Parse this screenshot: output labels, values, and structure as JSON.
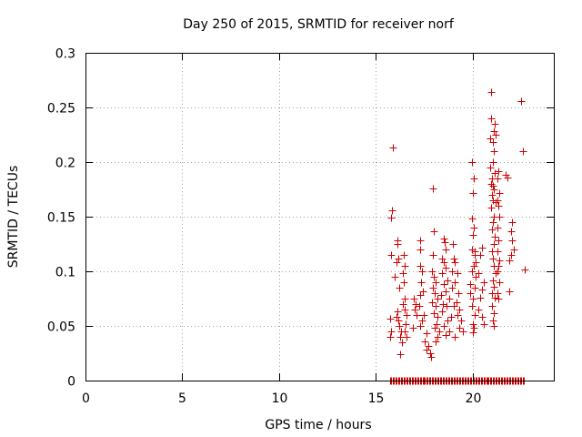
{
  "chart_data": {
    "type": "scatter",
    "title": "Day 250 of 2015, SRMTID for receiver norf",
    "xlabel": "GPS time / hours",
    "ylabel": "SRMTID / TECUs",
    "xlim": [
      0,
      24.2
    ],
    "ylim": [
      0,
      0.3
    ],
    "xticks": [
      0,
      5,
      10,
      15,
      20
    ],
    "xtick_labels": [
      "0",
      "5",
      "10",
      "15",
      "20"
    ],
    "yticks": [
      0,
      0.05,
      0.1,
      0.15,
      0.2,
      0.25,
      0.3
    ],
    "ytick_labels": [
      "0",
      "0.05",
      "0.1",
      "0.15",
      "0.2",
      "0.25",
      "0.3"
    ],
    "grid": true,
    "marker": "+",
    "color": "#cc0000",
    "points": [
      [
        15.73,
        0
      ],
      [
        15.8,
        0
      ],
      [
        15.87,
        0
      ],
      [
        15.94,
        0
      ],
      [
        16.01,
        0
      ],
      [
        16.08,
        0
      ],
      [
        16.15,
        0
      ],
      [
        16.22,
        0
      ],
      [
        16.29,
        0
      ],
      [
        16.36,
        0
      ],
      [
        16.43,
        0
      ],
      [
        16.5,
        0
      ],
      [
        16.57,
        0
      ],
      [
        16.64,
        0
      ],
      [
        16.71,
        0
      ],
      [
        16.78,
        0
      ],
      [
        16.85,
        0
      ],
      [
        16.92,
        0
      ],
      [
        16.99,
        0
      ],
      [
        17.06,
        0
      ],
      [
        17.13,
        0
      ],
      [
        17.2,
        0
      ],
      [
        17.27,
        0
      ],
      [
        17.34,
        0
      ],
      [
        17.41,
        0
      ],
      [
        17.48,
        0
      ],
      [
        17.55,
        0
      ],
      [
        17.62,
        0
      ],
      [
        17.69,
        0
      ],
      [
        17.76,
        0
      ],
      [
        17.83,
        0
      ],
      [
        17.9,
        0
      ],
      [
        17.97,
        0
      ],
      [
        18.04,
        0
      ],
      [
        18.11,
        0
      ],
      [
        18.18,
        0
      ],
      [
        18.25,
        0
      ],
      [
        18.32,
        0
      ],
      [
        18.39,
        0
      ],
      [
        18.46,
        0
      ],
      [
        18.53,
        0
      ],
      [
        18.6,
        0
      ],
      [
        18.67,
        0
      ],
      [
        18.74,
        0
      ],
      [
        18.81,
        0
      ],
      [
        18.88,
        0
      ],
      [
        18.95,
        0
      ],
      [
        19.02,
        0
      ],
      [
        19.09,
        0
      ],
      [
        19.16,
        0
      ],
      [
        19.23,
        0
      ],
      [
        19.3,
        0
      ],
      [
        19.37,
        0
      ],
      [
        19.44,
        0
      ],
      [
        19.51,
        0
      ],
      [
        19.58,
        0
      ],
      [
        19.65,
        0
      ],
      [
        19.72,
        0
      ],
      [
        19.79,
        0
      ],
      [
        19.86,
        0
      ],
      [
        19.93,
        0
      ],
      [
        20,
        0
      ],
      [
        20.07,
        0
      ],
      [
        20.14,
        0
      ],
      [
        20.21,
        0
      ],
      [
        20.28,
        0
      ],
      [
        20.35,
        0
      ],
      [
        20.42,
        0
      ],
      [
        20.49,
        0
      ],
      [
        20.56,
        0
      ],
      [
        20.63,
        0
      ],
      [
        20.7,
        0
      ],
      [
        20.77,
        0
      ],
      [
        20.84,
        0
      ],
      [
        20.91,
        0
      ],
      [
        20.98,
        0
      ],
      [
        21.05,
        0
      ],
      [
        21.12,
        0
      ],
      [
        21.19,
        0
      ],
      [
        21.26,
        0
      ],
      [
        21.33,
        0
      ],
      [
        21.4,
        0
      ],
      [
        21.47,
        0
      ],
      [
        21.54,
        0
      ],
      [
        21.61,
        0
      ],
      [
        21.68,
        0
      ],
      [
        21.75,
        0
      ],
      [
        21.82,
        0
      ],
      [
        21.89,
        0
      ],
      [
        21.96,
        0
      ],
      [
        22.03,
        0
      ],
      [
        22.1,
        0
      ],
      [
        22.17,
        0
      ],
      [
        22.24,
        0
      ],
      [
        22.31,
        0
      ],
      [
        22.38,
        0
      ],
      [
        22.45,
        0
      ],
      [
        22.52,
        0
      ],
      [
        22.59,
        0
      ],
      [
        22.66,
        0
      ],
      [
        15.88,
        0.213
      ],
      [
        15.82,
        0.156
      ],
      [
        15.8,
        0.149
      ],
      [
        15.8,
        0.115
      ],
      [
        15.75,
        0.057
      ],
      [
        15.78,
        0.045
      ],
      [
        15.76,
        0.04
      ],
      [
        16.1,
        0.128
      ],
      [
        16.12,
        0.125
      ],
      [
        16.05,
        0.108
      ],
      [
        16.15,
        0.112
      ],
      [
        16.0,
        0.095
      ],
      [
        16.2,
        0.085
      ],
      [
        16.1,
        0.063
      ],
      [
        16.05,
        0.058
      ],
      [
        16.15,
        0.055
      ],
      [
        16.2,
        0.05
      ],
      [
        16.3,
        0.045
      ],
      [
        16.25,
        0.04
      ],
      [
        16.35,
        0.035
      ],
      [
        16.25,
        0.024
      ],
      [
        16.45,
        0.115
      ],
      [
        16.5,
        0.105
      ],
      [
        16.4,
        0.098
      ],
      [
        16.45,
        0.09
      ],
      [
        16.5,
        0.075
      ],
      [
        16.4,
        0.07
      ],
      [
        16.5,
        0.065
      ],
      [
        16.6,
        0.06
      ],
      [
        16.55,
        0.052
      ],
      [
        16.5,
        0.045
      ],
      [
        16.6,
        0.04
      ],
      [
        16.95,
        0.075
      ],
      [
        17.05,
        0.07
      ],
      [
        17.0,
        0.065
      ],
      [
        17.1,
        0.06
      ],
      [
        16.9,
        0.048
      ],
      [
        17.3,
        0.128
      ],
      [
        17.28,
        0.12
      ],
      [
        17.3,
        0.105
      ],
      [
        17.4,
        0.1
      ],
      [
        17.35,
        0.09
      ],
      [
        17.45,
        0.082
      ],
      [
        17.3,
        0.078
      ],
      [
        17.25,
        0.068
      ],
      [
        17.5,
        0.06
      ],
      [
        17.4,
        0.055
      ],
      [
        17.3,
        0.05
      ],
      [
        17.6,
        0.043
      ],
      [
        17.55,
        0.036
      ],
      [
        17.7,
        0.032
      ],
      [
        17.6,
        0.028
      ],
      [
        17.8,
        0.025
      ],
      [
        17.85,
        0.022
      ],
      [
        17.95,
        0.176
      ],
      [
        18.0,
        0.137
      ],
      [
        17.95,
        0.115
      ],
      [
        17.9,
        0.1
      ],
      [
        18.0,
        0.095
      ],
      [
        18.1,
        0.09
      ],
      [
        17.95,
        0.085
      ],
      [
        18.05,
        0.08
      ],
      [
        18.2,
        0.075
      ],
      [
        17.9,
        0.072
      ],
      [
        18.1,
        0.068
      ],
      [
        18.0,
        0.062
      ],
      [
        18.2,
        0.058
      ],
      [
        18.15,
        0.052
      ],
      [
        18.05,
        0.048
      ],
      [
        18.3,
        0.045
      ],
      [
        18.2,
        0.04
      ],
      [
        18.1,
        0.036
      ],
      [
        18.5,
        0.13
      ],
      [
        18.55,
        0.127
      ],
      [
        18.6,
        0.12
      ],
      [
        18.4,
        0.112
      ],
      [
        18.5,
        0.108
      ],
      [
        18.6,
        0.103
      ],
      [
        18.4,
        0.098
      ],
      [
        18.7,
        0.092
      ],
      [
        18.5,
        0.088
      ],
      [
        18.6,
        0.082
      ],
      [
        18.35,
        0.078
      ],
      [
        18.8,
        0.075
      ],
      [
        18.45,
        0.07
      ],
      [
        18.65,
        0.068
      ],
      [
        18.4,
        0.063
      ],
      [
        18.9,
        0.058
      ],
      [
        18.7,
        0.055
      ],
      [
        18.5,
        0.05
      ],
      [
        18.8,
        0.045
      ],
      [
        18.6,
        0.042
      ],
      [
        19.0,
        0.125
      ],
      [
        19.05,
        0.112
      ],
      [
        19.1,
        0.108
      ],
      [
        18.95,
        0.1
      ],
      [
        19.2,
        0.098
      ],
      [
        19.1,
        0.09
      ],
      [
        18.95,
        0.085
      ],
      [
        19.25,
        0.08
      ],
      [
        19.15,
        0.072
      ],
      [
        19.05,
        0.068
      ],
      [
        19.3,
        0.065
      ],
      [
        19.2,
        0.06
      ],
      [
        19.4,
        0.055
      ],
      [
        19.3,
        0.048
      ],
      [
        19.5,
        0.045
      ],
      [
        19.1,
        0.04
      ],
      [
        19.95,
        0.2
      ],
      [
        20.05,
        0.185
      ],
      [
        20.0,
        0.172
      ],
      [
        19.95,
        0.148
      ],
      [
        20.05,
        0.14
      ],
      [
        20.0,
        0.133
      ],
      [
        19.95,
        0.12
      ],
      [
        20.1,
        0.118
      ],
      [
        20.1,
        0.115
      ],
      [
        20.15,
        0.108
      ],
      [
        20.05,
        0.105
      ],
      [
        19.95,
        0.1
      ],
      [
        20.15,
        0.095
      ],
      [
        19.9,
        0.088
      ],
      [
        20.1,
        0.085
      ],
      [
        19.9,
        0.08
      ],
      [
        20.0,
        0.075
      ],
      [
        19.95,
        0.068
      ],
      [
        20.1,
        0.06
      ],
      [
        20.0,
        0.052
      ],
      [
        20.05,
        0.048
      ],
      [
        20.0,
        0.044
      ],
      [
        20.5,
        0.122
      ],
      [
        20.4,
        0.115
      ],
      [
        20.3,
        0.098
      ],
      [
        20.6,
        0.09
      ],
      [
        20.5,
        0.083
      ],
      [
        20.4,
        0.076
      ],
      [
        20.3,
        0.065
      ],
      [
        20.5,
        0.058
      ],
      [
        20.6,
        0.052
      ],
      [
        20.95,
        0.264
      ],
      [
        20.95,
        0.24
      ],
      [
        21.15,
        0.235
      ],
      [
        21.1,
        0.228
      ],
      [
        21.2,
        0.225
      ],
      [
        20.9,
        0.222
      ],
      [
        21.05,
        0.218
      ],
      [
        21.1,
        0.21
      ],
      [
        21.05,
        0.2
      ],
      [
        20.9,
        0.195
      ],
      [
        21.15,
        0.19
      ],
      [
        21.0,
        0.185
      ],
      [
        20.95,
        0.18
      ],
      [
        21.05,
        0.178
      ],
      [
        21.1,
        0.175
      ],
      [
        21.0,
        0.17
      ],
      [
        21.05,
        0.165
      ],
      [
        21.2,
        0.163
      ],
      [
        20.95,
        0.158
      ],
      [
        21.1,
        0.15
      ],
      [
        21.05,
        0.145
      ],
      [
        21.0,
        0.138
      ],
      [
        21.15,
        0.132
      ],
      [
        21.1,
        0.125
      ],
      [
        21.0,
        0.118
      ],
      [
        21.05,
        0.112
      ],
      [
        21.1,
        0.105
      ],
      [
        21.2,
        0.098
      ],
      [
        21.05,
        0.092
      ],
      [
        21.1,
        0.086
      ],
      [
        21.0,
        0.08
      ],
      [
        21.15,
        0.076
      ],
      [
        21.0,
        0.068
      ],
      [
        21.1,
        0.062
      ],
      [
        21.05,
        0.055
      ],
      [
        21.1,
        0.05
      ],
      [
        21.35,
        0.192
      ],
      [
        21.3,
        0.185
      ],
      [
        21.4,
        0.172
      ],
      [
        21.3,
        0.165
      ],
      [
        21.35,
        0.16
      ],
      [
        21.4,
        0.15
      ],
      [
        21.3,
        0.14
      ],
      [
        21.35,
        0.128
      ],
      [
        21.3,
        0.118
      ],
      [
        21.4,
        0.11
      ],
      [
        21.35,
        0.105
      ],
      [
        21.3,
        0.1
      ],
      [
        21.4,
        0.09
      ],
      [
        21.3,
        0.08
      ],
      [
        21.35,
        0.075
      ],
      [
        21.7,
        0.188
      ],
      [
        21.8,
        0.186
      ],
      [
        21.9,
        0.11
      ],
      [
        22.05,
        0.145
      ],
      [
        22.0,
        0.137
      ],
      [
        22.05,
        0.128
      ],
      [
        22.15,
        0.12
      ],
      [
        22.0,
        0.115
      ],
      [
        21.9,
        0.082
      ],
      [
        22.5,
        0.256
      ],
      [
        22.6,
        0.21
      ],
      [
        22.7,
        0.102
      ]
    ]
  }
}
